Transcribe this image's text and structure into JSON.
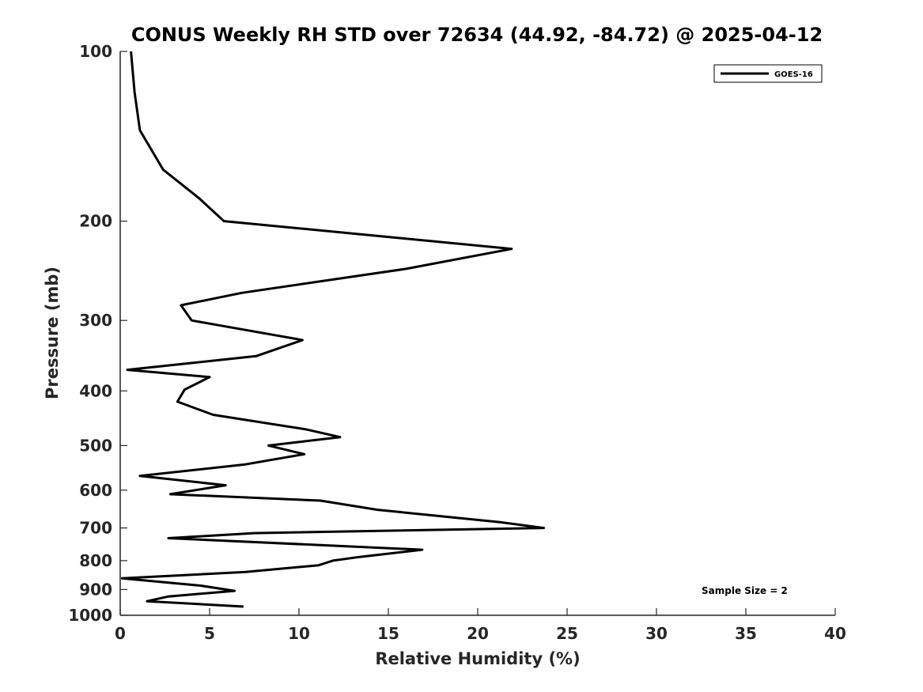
{
  "chart_data": {
    "type": "line",
    "title": "CONUS Weekly RH STD over 72634 (44.92, -84.72) @ 2025-04-12",
    "xlabel": "Relative Humidity (%)",
    "ylabel": "Pressure (mb)",
    "xlim": [
      0,
      40
    ],
    "ylim": [
      1000,
      100
    ],
    "y_scale": "log",
    "y_reversed": true,
    "grid": false,
    "x_ticks": [
      "0",
      "5",
      "10",
      "15",
      "20",
      "25",
      "30",
      "35",
      "40"
    ],
    "y_ticks": [
      "100",
      "200",
      "300",
      "400",
      "500",
      "600",
      "700",
      "800",
      "900",
      "1000"
    ],
    "legend": {
      "position": "top-right",
      "entries": [
        "GOES-16"
      ]
    },
    "annotations": [
      {
        "text": "Sample Size = 2",
        "position": "bottom-right"
      }
    ],
    "series": [
      {
        "name": "GOES-16",
        "color": "#000000",
        "x": [
          0.6,
          0.8,
          1.1,
          2.4,
          4.4,
          5.8,
          21.9,
          16.0,
          6.8,
          3.4,
          4.0,
          10.2,
          7.6,
          0.4,
          5.0,
          3.6,
          3.2,
          5.2,
          10.4,
          12.3,
          8.3,
          10.3,
          7.0,
          1.1,
          5.9,
          2.8,
          11.2,
          14.4,
          21.3,
          23.7,
          7.5,
          2.7,
          16.9,
          13.4,
          11.9,
          11.1,
          7.0,
          0.1,
          4.5,
          6.4,
          2.7,
          1.5,
          6.9
        ],
        "y": [
          100,
          118,
          138,
          162,
          182,
          200,
          224,
          243,
          268,
          282,
          300,
          325,
          347,
          367,
          378,
          398,
          418,
          441,
          468,
          483,
          500,
          518,
          540,
          566,
          588,
          610,
          626,
          650,
          684,
          700,
          715,
          730,
          765,
          788,
          800,
          815,
          838,
          860,
          886,
          905,
          926,
          944,
          965
        ]
      }
    ]
  }
}
